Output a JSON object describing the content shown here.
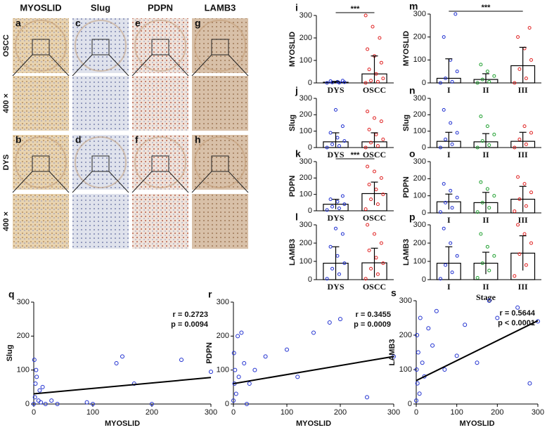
{
  "image_panels": {
    "column_headers": [
      "MYOSLID",
      "Slug",
      "PDPN",
      "LAMB3"
    ],
    "row_labels": [
      "OSCC",
      "400 ×",
      "DYS",
      "400 ×"
    ],
    "letters": [
      [
        "a",
        "c",
        "e",
        "g"
      ],
      [
        "b",
        "d",
        "f",
        "h"
      ]
    ]
  },
  "chart_data": [
    {
      "type": "dotbar",
      "label": "i",
      "ylabel": "MYOSLID",
      "categories": [
        "DYS",
        "OSCC"
      ],
      "colors": [
        "#1f2fd0",
        "#e02020"
      ],
      "values": [
        3,
        40
      ],
      "errors": [
        4,
        80
      ],
      "points": [
        [
          0,
          1,
          2,
          3,
          5,
          8,
          10
        ],
        [
          0,
          5,
          10,
          20,
          40,
          60,
          90,
          120,
          150,
          200,
          250,
          300
        ]
      ],
      "ylim": [
        0,
        300
      ],
      "yticks": [
        0,
        100,
        200,
        300
      ],
      "significance": "***",
      "bracket": [
        0,
        1
      ]
    },
    {
      "type": "dotbar",
      "label": "j",
      "ylabel": "Slug",
      "categories": [
        "DYS",
        "OSCC"
      ],
      "colors": [
        "#1f2fd0",
        "#e02020"
      ],
      "values": [
        35,
        35
      ],
      "errors": [
        55,
        55
      ],
      "points": [
        [
          0,
          10,
          20,
          40,
          60,
          90,
          130,
          230
        ],
        [
          0,
          10,
          30,
          50,
          80,
          110,
          160,
          180,
          220
        ]
      ],
      "ylim": [
        0,
        300
      ],
      "yticks": [
        0,
        100,
        200,
        300
      ]
    },
    {
      "type": "dotbar",
      "label": "k",
      "ylabel": "PDPN",
      "categories": [
        "DYS",
        "OSCC"
      ],
      "colors": [
        "#1f2fd0",
        "#e02020"
      ],
      "values": [
        40,
        105
      ],
      "errors": [
        30,
        70
      ],
      "points": [
        [
          5,
          15,
          25,
          40,
          55,
          70,
          90
        ],
        [
          10,
          40,
          70,
          100,
          130,
          160,
          200,
          240,
          270
        ]
      ],
      "ylim": [
        0,
        300
      ],
      "yticks": [
        0,
        100,
        200,
        300
      ],
      "significance": "***",
      "bracket": [
        0,
        1
      ]
    },
    {
      "type": "dotbar",
      "label": "l",
      "ylabel": "LAMB3",
      "categories": [
        "DYS",
        "OSCC"
      ],
      "colors": [
        "#1f2fd0",
        "#e02020"
      ],
      "values": [
        90,
        92
      ],
      "errors": [
        90,
        80
      ],
      "points": [
        [
          5,
          30,
          60,
          90,
          130,
          180,
          250,
          280
        ],
        [
          5,
          30,
          60,
          90,
          120,
          160,
          200,
          250,
          300
        ]
      ],
      "ylim": [
        0,
        300
      ],
      "yticks": [
        0,
        100,
        200,
        300
      ]
    },
    {
      "type": "dotbar",
      "label": "m",
      "ylabel": "MYOSLID",
      "categories": [
        "I",
        "II",
        "III"
      ],
      "colors": [
        "#1f2fd0",
        "#20a030",
        "#e02020"
      ],
      "values": [
        20,
        15,
        75
      ],
      "errors": [
        85,
        25,
        80
      ],
      "points": [
        [
          0,
          5,
          20,
          50,
          100,
          200,
          300
        ],
        [
          0,
          5,
          15,
          30,
          50,
          80
        ],
        [
          0,
          20,
          60,
          100,
          150,
          200,
          240
        ]
      ],
      "ylim": [
        0,
        300
      ],
      "yticks": [
        0,
        100,
        200,
        300
      ],
      "significance": "***",
      "bracket": [
        0,
        2
      ]
    },
    {
      "type": "dotbar",
      "label": "n",
      "ylabel": "Slug",
      "categories": [
        "I",
        "II",
        "III"
      ],
      "colors": [
        "#1f2fd0",
        "#20a030",
        "#e02020"
      ],
      "values": [
        38,
        35,
        38
      ],
      "errors": [
        55,
        50,
        55
      ],
      "points": [
        [
          0,
          20,
          50,
          90,
          150,
          230
        ],
        [
          0,
          15,
          40,
          80,
          130,
          190
        ],
        [
          0,
          20,
          50,
          90,
          130
        ]
      ],
      "ylim": [
        0,
        300
      ],
      "yticks": [
        0,
        100,
        200,
        300
      ]
    },
    {
      "type": "dotbar",
      "label": "o",
      "ylabel": "PDPN",
      "categories": [
        "I",
        "II",
        "III"
      ],
      "colors": [
        "#1f2fd0",
        "#20a030",
        "#e02020"
      ],
      "values": [
        65,
        60,
        80
      ],
      "errors": [
        45,
        60,
        75
      ],
      "points": [
        [
          5,
          30,
          60,
          90,
          130,
          170
        ],
        [
          5,
          30,
          60,
          100,
          140,
          180
        ],
        [
          10,
          40,
          80,
          120,
          170,
          210
        ]
      ],
      "ylim": [
        0,
        300
      ],
      "yticks": [
        0,
        100,
        200,
        300
      ]
    },
    {
      "type": "dotbar",
      "label": "p",
      "ylabel": "LAMB3",
      "xlabel": "Stage",
      "categories": [
        "I",
        "II",
        "III"
      ],
      "colors": [
        "#1f2fd0",
        "#20a030",
        "#e02020"
      ],
      "values": [
        90,
        90,
        145
      ],
      "errors": [
        90,
        60,
        95
      ],
      "points": [
        [
          5,
          40,
          80,
          130,
          200,
          280
        ],
        [
          10,
          50,
          90,
          130,
          180,
          250
        ],
        [
          20,
          80,
          140,
          200,
          250,
          300
        ]
      ],
      "ylim": [
        0,
        300
      ],
      "yticks": [
        0,
        100,
        200,
        300
      ]
    },
    {
      "type": "scatter",
      "label": "q",
      "xlabel": "MYOSLID",
      "ylabel": "Slug",
      "color": "#1f2fd0",
      "x": [
        0,
        1,
        2,
        3,
        4,
        5,
        8,
        10,
        12,
        15,
        20,
        30,
        40,
        90,
        100,
        140,
        150,
        170,
        200,
        250,
        300
      ],
      "y": [
        0,
        130,
        20,
        60,
        100,
        80,
        10,
        40,
        5,
        50,
        0,
        10,
        0,
        5,
        0,
        120,
        140,
        60,
        0,
        130,
        95
      ],
      "fit": {
        "x": [
          0,
          300
        ],
        "y": [
          30,
          78
        ]
      },
      "annotations": [
        "r = 0.2723",
        "p = 0.0094"
      ],
      "xlim": [
        0,
        300
      ],
      "ylim": [
        0,
        300
      ],
      "xticks": [
        0,
        100,
        200,
        300
      ],
      "yticks": [
        0,
        100,
        200,
        300
      ]
    },
    {
      "type": "scatter",
      "label": "r",
      "xlabel": "MYOSLID",
      "ylabel": "PDPN",
      "color": "#1f2fd0",
      "x": [
        0,
        1,
        2,
        3,
        5,
        8,
        10,
        15,
        20,
        25,
        30,
        40,
        60,
        100,
        120,
        150,
        180,
        200,
        250,
        300
      ],
      "y": [
        10,
        150,
        60,
        100,
        30,
        200,
        80,
        210,
        120,
        0,
        60,
        100,
        140,
        160,
        80,
        210,
        240,
        250,
        20,
        140
      ],
      "fit": {
        "x": [
          0,
          300
        ],
        "y": [
          60,
          140
        ]
      },
      "annotations": [
        "r = 0.3455",
        "p = 0.0009"
      ],
      "xlim": [
        0,
        300
      ],
      "ylim": [
        0,
        300
      ],
      "xticks": [
        0,
        100,
        200,
        300
      ],
      "yticks": [
        0,
        100,
        200,
        300
      ]
    },
    {
      "type": "scatter",
      "label": "s",
      "xlabel": "MYOSLID",
      "ylabel": "LAMB3",
      "color": "#1f2fd0",
      "x": [
        0,
        1,
        2,
        3,
        5,
        8,
        10,
        15,
        20,
        30,
        40,
        50,
        70,
        100,
        120,
        150,
        180,
        200,
        250,
        280,
        300
      ],
      "y": [
        10,
        100,
        200,
        60,
        150,
        30,
        250,
        120,
        80,
        220,
        170,
        270,
        100,
        140,
        230,
        120,
        300,
        250,
        280,
        60,
        240
      ],
      "fit": {
        "x": [
          0,
          300
        ],
        "y": [
          68,
          242
        ]
      },
      "annotations": [
        "r = 0.5644",
        "p < 0.0001"
      ],
      "xlim": [
        0,
        300
      ],
      "ylim": [
        0,
        300
      ],
      "xticks": [
        0,
        100,
        200,
        300
      ],
      "yticks": [
        0,
        100,
        200,
        300
      ]
    }
  ]
}
